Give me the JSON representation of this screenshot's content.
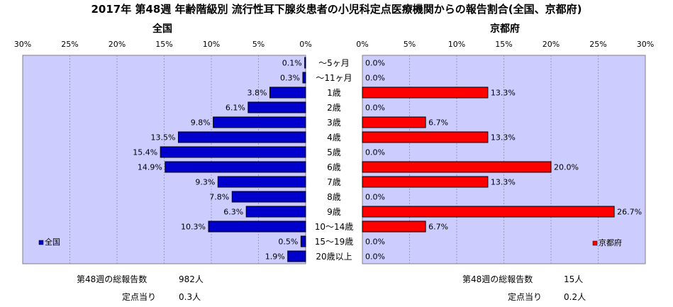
{
  "title": "2017年 第48週 年齢階級別 流行性耳下腺炎患者の小児科定点医療機関からの報告割合(全国、京都府)",
  "chart_data": [
    {
      "type": "bar",
      "orientation": "horizontal",
      "direction": "right-to-left",
      "title": "全国",
      "categories": [
        "～5ヶ月",
        "～11ヶ月",
        "1歳",
        "2歳",
        "3歳",
        "4歳",
        "5歳",
        "6歳",
        "7歳",
        "8歳",
        "9歳",
        "10～14歳",
        "15～19歳",
        "20歳以上"
      ],
      "series": [
        {
          "name": "全国",
          "color": "#0000cc",
          "values": [
            0.1,
            0.3,
            3.8,
            6.1,
            9.8,
            13.5,
            15.4,
            14.9,
            9.3,
            7.8,
            6.3,
            10.3,
            0.5,
            1.9
          ],
          "labels": [
            "0.1%",
            "0.3%",
            "3.8%",
            "6.1%",
            "9.8%",
            "13.5%",
            "15.4%",
            "14.9%",
            "9.3%",
            "7.8%",
            "6.3%",
            "10.3%",
            "0.5%",
            "1.9%"
          ]
        }
      ],
      "xlim": [
        0,
        30
      ],
      "ticks": [
        "30%",
        "25%",
        "20%",
        "15%",
        "10%",
        "5%",
        "0%"
      ],
      "grid": true,
      "legend": "bottom-left",
      "plot_color": "#ccccff"
    },
    {
      "type": "bar",
      "orientation": "horizontal",
      "direction": "left-to-right",
      "title": "京都府",
      "categories": [
        "～5ヶ月",
        "～11ヶ月",
        "1歳",
        "2歳",
        "3歳",
        "4歳",
        "5歳",
        "6歳",
        "7歳",
        "8歳",
        "9歳",
        "10～14歳",
        "15～19歳",
        "20歳以上"
      ],
      "series": [
        {
          "name": "京都府",
          "color": "#ff0000",
          "values": [
            0.0,
            0.0,
            13.3,
            0.0,
            6.7,
            13.3,
            0.0,
            20.0,
            13.3,
            0.0,
            26.7,
            6.7,
            0.0,
            0.0
          ],
          "labels": [
            "0.0%",
            "0.0%",
            "13.3%",
            "0.0%",
            "6.7%",
            "13.3%",
            "0.0%",
            "20.0%",
            "13.3%",
            "0.0%",
            "26.7%",
            "6.7%",
            "0.0%",
            "0.0%"
          ]
        }
      ],
      "xlim": [
        0,
        30
      ],
      "ticks": [
        "0%",
        "5%",
        "10%",
        "15%",
        "20%",
        "25%",
        "30%"
      ],
      "grid": true,
      "legend": "bottom-right",
      "plot_color": "#ccccff"
    }
  ],
  "footer": {
    "left": {
      "total_label": "第48週の総報告数",
      "total_value": "982人",
      "per_label": "定点当り",
      "per_value": "0.3人"
    },
    "right": {
      "total_label": "第48週の総報告数",
      "total_value": "15人",
      "per_label": "定点当り",
      "per_value": "0.2人"
    }
  }
}
